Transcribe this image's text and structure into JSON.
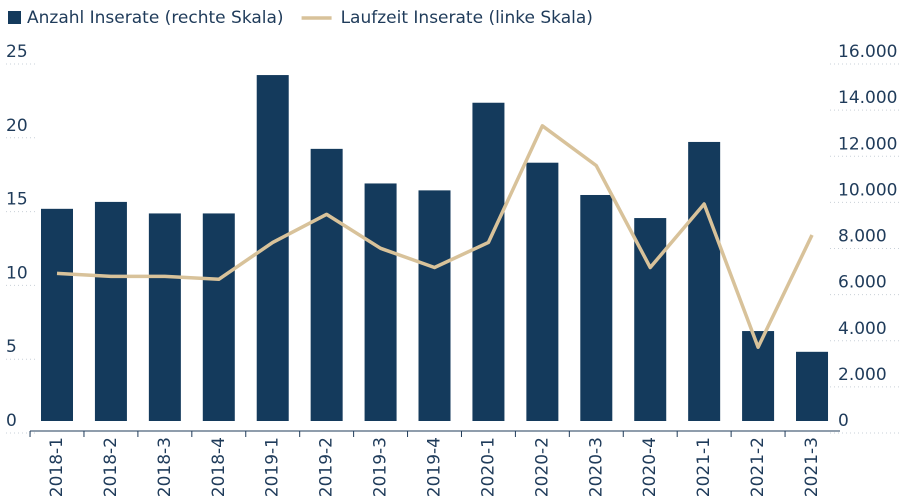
{
  "chart_data": {
    "type": "bar+line",
    "categories": [
      "2018-1",
      "2018-2",
      "2018-3",
      "2018-4",
      "2019-1",
      "2019-2",
      "2019-3",
      "2019-4",
      "2020-1",
      "2020-2",
      "2020-3",
      "2020-4",
      "2021-1",
      "2021-2",
      "2021-3"
    ],
    "series": [
      {
        "name": "Anzahl Inserate (rechte Skala)",
        "type": "bar",
        "axis": "y2",
        "color": "#143a5c",
        "values": [
          9200,
          9500,
          9000,
          9000,
          15000,
          11800,
          10300,
          10000,
          13800,
          11200,
          9800,
          8800,
          12100,
          3900,
          3000
        ]
      },
      {
        "name": "Laufzeit Inserate (linke Skala)",
        "type": "line",
        "axis": "y",
        "color": "#d8c29a",
        "values": [
          10.0,
          9.8,
          9.8,
          9.6,
          12.1,
          14.0,
          11.7,
          10.4,
          12.1,
          20.0,
          17.3,
          10.4,
          14.7,
          5.0,
          12.6
        ]
      }
    ],
    "ylim": [
      0,
      25
    ],
    "yticks": [
      0,
      5,
      10,
      15,
      20,
      25
    ],
    "y2lim": [
      0,
      16000
    ],
    "y2ticks": [
      0,
      {
        "value": 2000,
        "label": "2.000"
      },
      {
        "value": 4000,
        "label": "4.000"
      },
      {
        "value": 6000,
        "label": "6.000"
      },
      {
        "value": 8000,
        "label": "8.000"
      },
      {
        "value": 10000,
        "label": "10.000"
      },
      {
        "value": 12000,
        "label": "12.000"
      },
      {
        "value": 14000,
        "label": "14.000"
      },
      {
        "value": 16000,
        "label": "16.000"
      }
    ],
    "legend": "top-left"
  }
}
